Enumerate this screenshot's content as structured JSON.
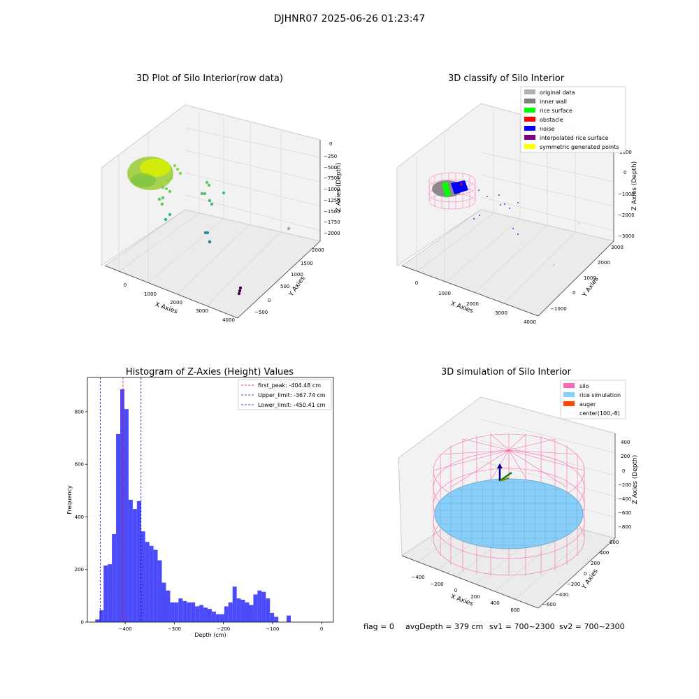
{
  "suptitle": "DJHNR07 2025-06-26 01:23:47",
  "colors": {
    "grid": "#d9d9d9",
    "pane": "#f2f2f2",
    "hist_bar": "#4b4bfa",
    "peak_line": "#ff0000",
    "limit_line": "#0000cc",
    "silo": "#ff69b4",
    "rice": "#87cefa",
    "auger": "#ff4500"
  },
  "plot1": {
    "title": "3D Plot of Silo Interior(row data)",
    "xlabel": "X Axies",
    "ylabel": "Y Axies",
    "zlabel": "Z Axies (Depth)",
    "xticks": [
      "0",
      "1000",
      "2000",
      "3000",
      "4000"
    ],
    "yticks": [
      "−500",
      "0",
      "500",
      "1000",
      "1500",
      "2000"
    ],
    "zticks": [
      "0",
      "−250",
      "−500",
      "−750",
      "−1000",
      "−1250",
      "−1500",
      "−1750",
      "−2000"
    ]
  },
  "plot2": {
    "title": "3D classify of Silo Interior",
    "xlabel": "X Axies",
    "ylabel": "Y Axies",
    "zlabel": "Z Axies (Depth)",
    "xticks": [
      "0",
      "1000",
      "2000",
      "3000",
      "4000"
    ],
    "yticks": [
      "−1000",
      "0",
      "1000",
      "2000",
      "3000"
    ],
    "zticks": [
      "1000",
      "0",
      "−1000",
      "−2000",
      "−3000"
    ],
    "legend": [
      {
        "label": "original data",
        "color": "#b0b0b0"
      },
      {
        "label": "inner wall",
        "color": "#808080"
      },
      {
        "label": "rice surface",
        "color": "#00ff00"
      },
      {
        "label": "obstacle",
        "color": "#ff0000"
      },
      {
        "label": "noise",
        "color": "#0000ff"
      },
      {
        "label": "interpolated rice surface",
        "color": "#800080"
      },
      {
        "label": "symmetric generated points",
        "color": "#ffff00"
      }
    ]
  },
  "plot3": {
    "title": "Histogram of Z-Axies (Height) Values",
    "xlabel": "Depth (cm)",
    "ylabel": "Frequency",
    "legend": [
      {
        "label": "first_peak: -404.48 cm",
        "color": "#ff0000"
      },
      {
        "label": "Upper_limit: -367.74 cm",
        "color": "#0000cc"
      },
      {
        "label": "Lower_limit: -450.41 cm",
        "color": "#0000cc"
      }
    ]
  },
  "plot4": {
    "title": "3D simulation of Silo Interior",
    "xlabel": "X Axies",
    "ylabel": "Y Axies",
    "zlabel": "Z Axies (Depth)",
    "xticks": [
      "−400",
      "−200",
      "0",
      "200",
      "400",
      "600"
    ],
    "yticks": [
      "−600",
      "−400",
      "−200",
      "0",
      "200",
      "400",
      "600"
    ],
    "zticks": [
      "400",
      "200",
      "0",
      "−200",
      "−400",
      "−600",
      "−800"
    ],
    "legend": [
      {
        "label": "silo",
        "color": "#ff69b4"
      },
      {
        "label": "rice simulation",
        "color": "#87cefa"
      },
      {
        "label": "auger",
        "color": "#ff4500"
      },
      {
        "label": "center(100,-8)",
        "color": ""
      }
    ]
  },
  "status": {
    "flag": "flag = 0",
    "avg_depth": "avgDepth = 379 cm",
    "sv1": "sv1 = 700~2300",
    "sv2": "sv2 = 700~2300"
  },
  "chart_data": [
    {
      "type": "scatter",
      "title": "3D Plot of Silo Interior(row data)",
      "xlabel": "X Axies",
      "ylabel": "Y Axies",
      "zlabel": "Z Axies (Depth)",
      "xlim": [
        -500,
        4200
      ],
      "ylim": [
        -600,
        2300
      ],
      "zlim": [
        -2100,
        100
      ]
    },
    {
      "type": "scatter",
      "title": "3D classify of Silo Interior",
      "xlabel": "X Axies",
      "ylabel": "Y Axies",
      "zlabel": "Z Axies (Depth)",
      "xlim": [
        -500,
        4200
      ],
      "ylim": [
        -1500,
        3300
      ],
      "zlim": [
        -3300,
        1200
      ],
      "series": [
        {
          "name": "original data"
        },
        {
          "name": "inner wall"
        },
        {
          "name": "rice surface"
        },
        {
          "name": "obstacle"
        },
        {
          "name": "noise"
        },
        {
          "name": "interpolated rice surface"
        },
        {
          "name": "symmetric generated points"
        }
      ]
    },
    {
      "type": "bar",
      "title": "Histogram of Z-Axies (Height) Values",
      "xlabel": "Depth (cm)",
      "ylabel": "Frequency",
      "xlim": [
        -477,
        24
      ],
      "ylim": [
        0,
        930
      ],
      "xticks": [
        -400,
        -300,
        -200,
        -100,
        0
      ],
      "yticks": [
        0,
        200,
        400,
        600,
        800
      ],
      "bin_width": 8.47,
      "bin_start": -460.9,
      "values": [
        10,
        45,
        215,
        220,
        335,
        715,
        885,
        810,
        465,
        430,
        460,
        345,
        305,
        290,
        275,
        235,
        150,
        120,
        75,
        75,
        90,
        80,
        75,
        75,
        60,
        65,
        55,
        50,
        40,
        30,
        30,
        60,
        75,
        135,
        90,
        85,
        75,
        65,
        105,
        120,
        115,
        90,
        35,
        20,
        0,
        0,
        25
      ],
      "vlines": [
        {
          "name": "first_peak: -404.48 cm",
          "x": -404.48,
          "style": "dashed",
          "color": "#ff0000"
        },
        {
          "name": "Upper_limit: -367.74 cm",
          "x": -367.74,
          "style": "dashed",
          "color": "#0000cc"
        },
        {
          "name": "Lower_limit: -450.41 cm",
          "x": -450.41,
          "style": "dashed",
          "color": "#0000cc"
        }
      ],
      "legend_position": "top-right"
    },
    {
      "type": "surface",
      "title": "3D simulation of Silo Interior",
      "xlabel": "X Axies",
      "ylabel": "Y Axies",
      "zlabel": "Z Axies (Depth)",
      "xlim": [
        -550,
        750
      ],
      "ylim": [
        -750,
        750
      ],
      "zlim": [
        -900,
        480
      ],
      "series": [
        {
          "name": "silo"
        },
        {
          "name": "rice simulation"
        },
        {
          "name": "auger"
        },
        {
          "name": "center(100,-8)"
        }
      ]
    }
  ]
}
